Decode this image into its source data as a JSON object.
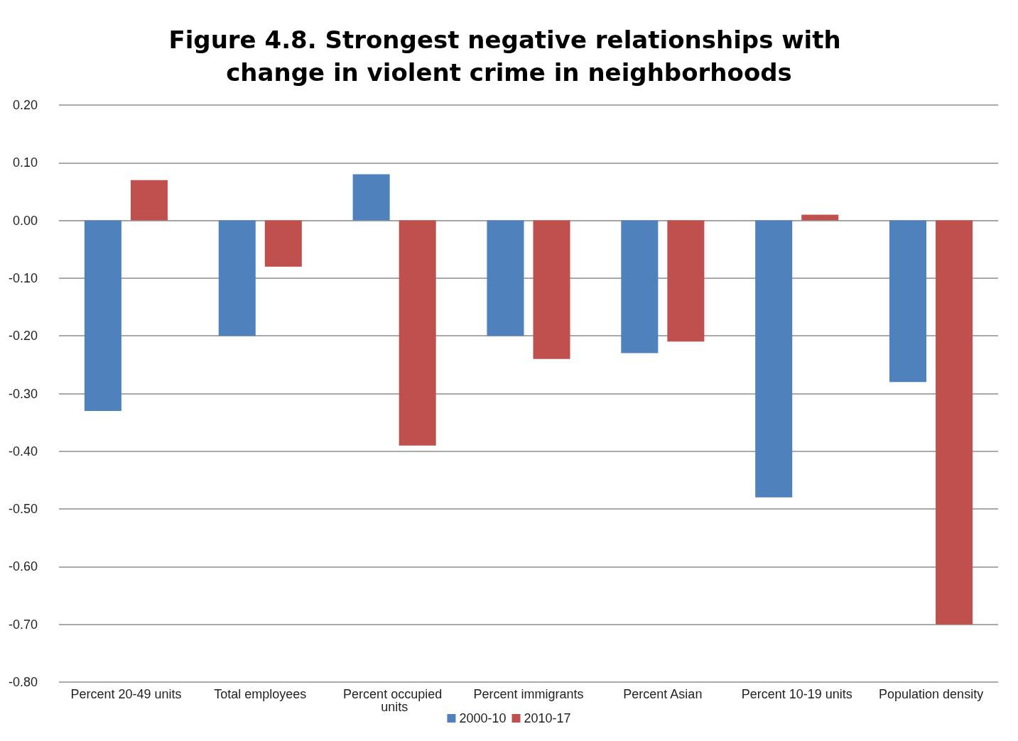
{
  "chart_data": {
    "type": "bar",
    "title": "Figure 4.8. Strongest negative relationships with change in violent crime in neighborhoods",
    "categories": [
      "Percent 20-49 units",
      "Total employees",
      "Percent occupied units",
      "Percent immigrants",
      "Percent Asian",
      "Percent 10-19 units",
      "Population density"
    ],
    "series": [
      {
        "name": "2000-10",
        "color": "#4f81bd",
        "values": [
          -0.33,
          -0.2,
          0.08,
          -0.2,
          -0.23,
          -0.48,
          -0.28
        ]
      },
      {
        "name": "2010-17",
        "color": "#c0504d",
        "values": [
          0.07,
          -0.08,
          -0.39,
          -0.24,
          -0.21,
          0.01,
          -0.7
        ]
      }
    ],
    "ylim": [
      -0.8,
      0.2
    ],
    "yticks": [
      {
        "value": -0.8,
        "label": "-0.80"
      },
      {
        "value": -0.7,
        "label": "-0.70"
      },
      {
        "value": -0.6,
        "label": "-0.60"
      },
      {
        "value": -0.5,
        "label": "-0.50"
      },
      {
        "value": -0.4,
        "label": "-0.40"
      },
      {
        "value": -0.3,
        "label": "-0.30"
      },
      {
        "value": -0.2,
        "label": "-0.20"
      },
      {
        "value": -0.1,
        "label": "-0.10"
      },
      {
        "value": 0,
        "label": "0.00"
      },
      {
        "value": 0.1,
        "label": "0.10"
      },
      {
        "value": 0.2,
        "label": "0.20"
      }
    ],
    "grid": "y",
    "legend": "bottom"
  }
}
